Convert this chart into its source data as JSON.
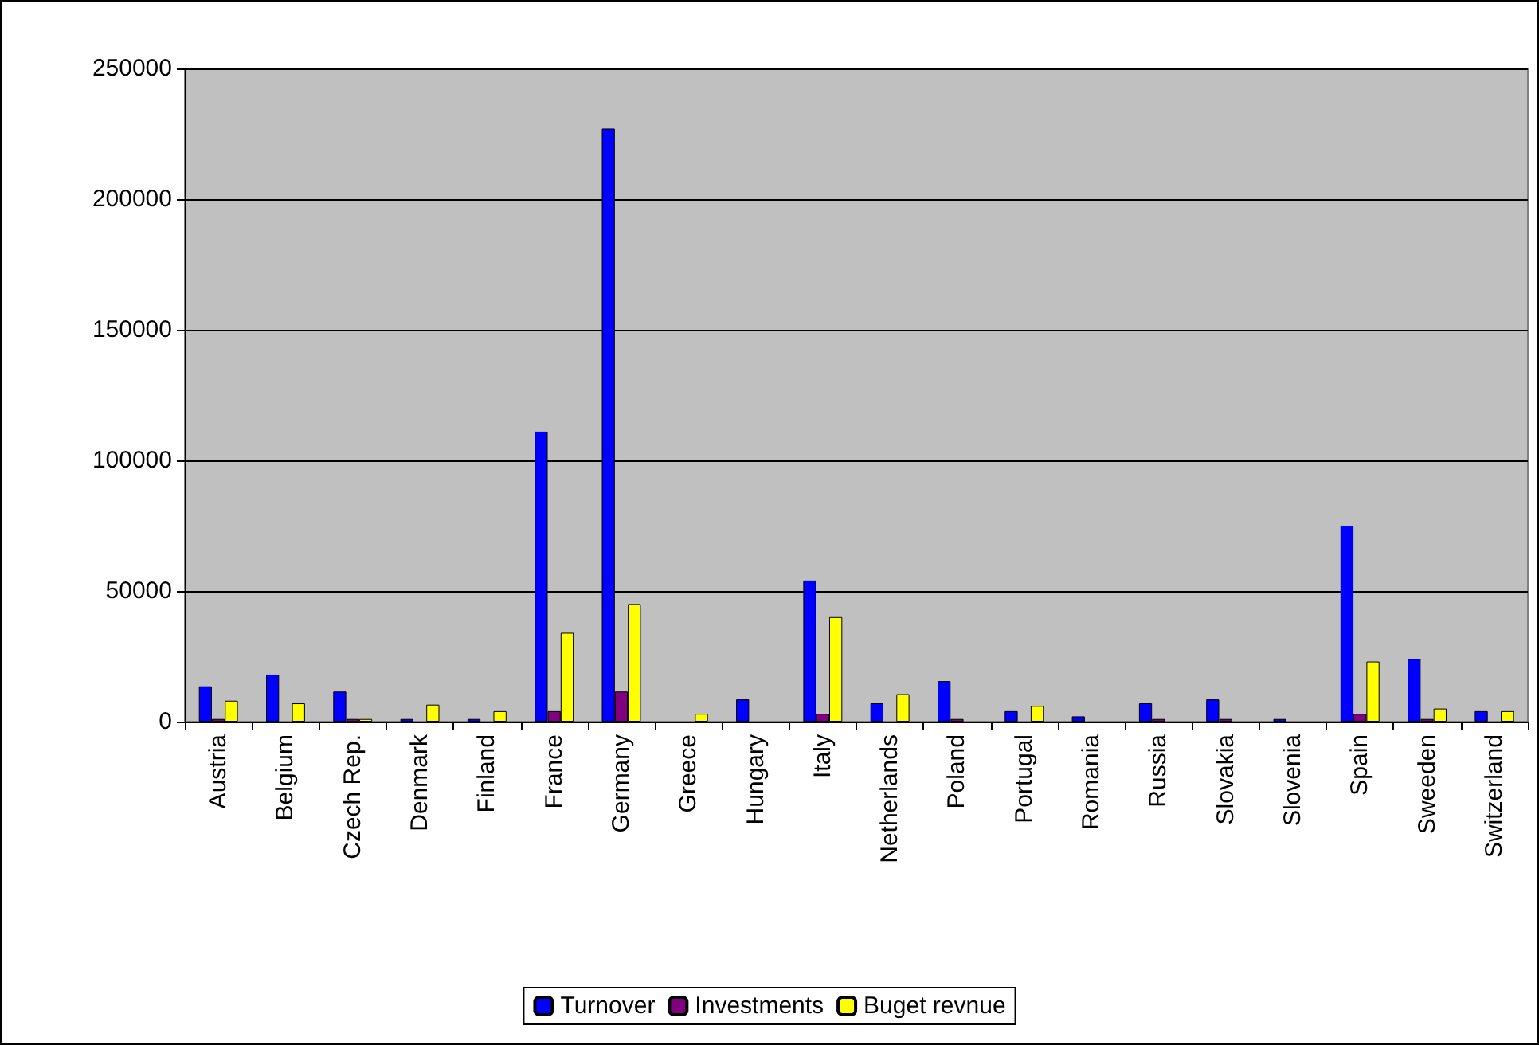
{
  "chart_data": {
    "type": "bar",
    "categories": [
      "Austria",
      "Belgium",
      "Czech Rep.",
      "Denmark",
      "Finland",
      "France",
      "Germany",
      "Greece",
      "Hungary",
      "Italy",
      "Netherlands",
      "Poland",
      "Portugal",
      "Romania",
      "Russia",
      "Slovakia",
      "Slovenia",
      "Spain",
      "Sweeden",
      "Switzerland"
    ],
    "series": [
      {
        "name": "Turnover",
        "color": "#0000ff",
        "values": [
          13500,
          18000,
          11500,
          1000,
          1000,
          111000,
          227000,
          null,
          8500,
          54000,
          7000,
          15500,
          4000,
          2000,
          7000,
          8500,
          1000,
          75000,
          24000,
          4000
        ]
      },
      {
        "name": "Investments",
        "color": "#800080",
        "values": [
          1000,
          null,
          1000,
          null,
          null,
          4000,
          11500,
          null,
          null,
          3000,
          null,
          1000,
          null,
          null,
          1000,
          1000,
          null,
          3000,
          1000,
          null
        ]
      },
      {
        "name": "Buget revnue",
        "color": "#ffff00",
        "values": [
          8000,
          7000,
          1000,
          6500,
          4000,
          34000,
          45000,
          3000,
          null,
          40000,
          10500,
          null,
          6000,
          null,
          null,
          null,
          null,
          23000,
          5000,
          4000
        ]
      }
    ],
    "ylim": [
      0,
      250000
    ],
    "yticks": [
      0,
      50000,
      100000,
      150000,
      200000,
      250000
    ],
    "grid": "y",
    "legend": "bottom"
  }
}
